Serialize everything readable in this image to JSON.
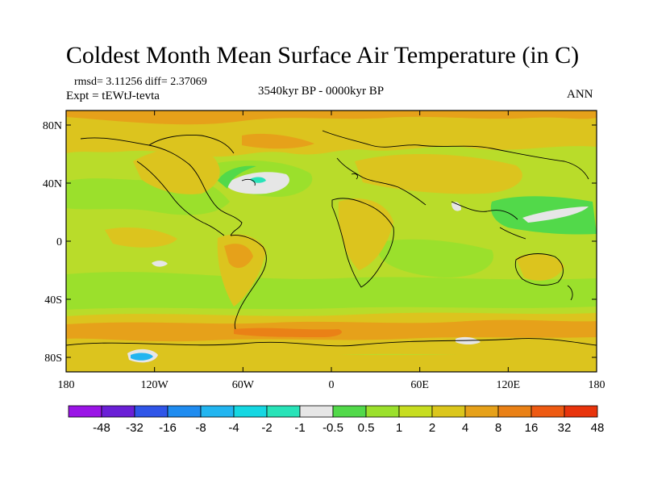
{
  "title": "Coldest Month Mean Surface Air Temperature (in C)",
  "stats": "rmsd= 3.11256 diff= 2.37069",
  "experiment": "Expt = tEWtJ-tevta",
  "period": "3540kyr BP - 0000kyr BP",
  "season": "ANN",
  "map": {
    "lon_range": [
      -180,
      180
    ],
    "lat_range": [
      -90,
      90
    ],
    "lon_ticks": [
      {
        "value": -180,
        "label": "180"
      },
      {
        "value": -120,
        "label": "120W"
      },
      {
        "value": -60,
        "label": "60W"
      },
      {
        "value": 0,
        "label": "0"
      },
      {
        "value": 60,
        "label": "60E"
      },
      {
        "value": 120,
        "label": "120E"
      },
      {
        "value": 180,
        "label": "180"
      }
    ],
    "lat_ticks": [
      {
        "value": 80,
        "label": "80N"
      },
      {
        "value": 40,
        "label": "40N"
      },
      {
        "value": 0,
        "label": "0"
      },
      {
        "value": -40,
        "label": "40S"
      },
      {
        "value": -80,
        "label": "80S"
      }
    ]
  },
  "colorbar": {
    "colors": [
      "#9a14e6",
      "#6a1fd6",
      "#2f55e8",
      "#1f8cf0",
      "#22b5f0",
      "#15d7e2",
      "#28e3b8",
      "#e6e6e6",
      "#52d94a",
      "#9be02c",
      "#c7dd20",
      "#dbc61c",
      "#e6a11a",
      "#ea8116",
      "#ee5a12",
      "#e8340c"
    ],
    "labels": [
      "-48",
      "-32",
      "-16",
      "-8",
      "-4",
      "-2",
      "-1",
      "-0.5",
      "0.5",
      "1",
      "2",
      "4",
      "8",
      "16",
      "32",
      "48"
    ]
  }
}
